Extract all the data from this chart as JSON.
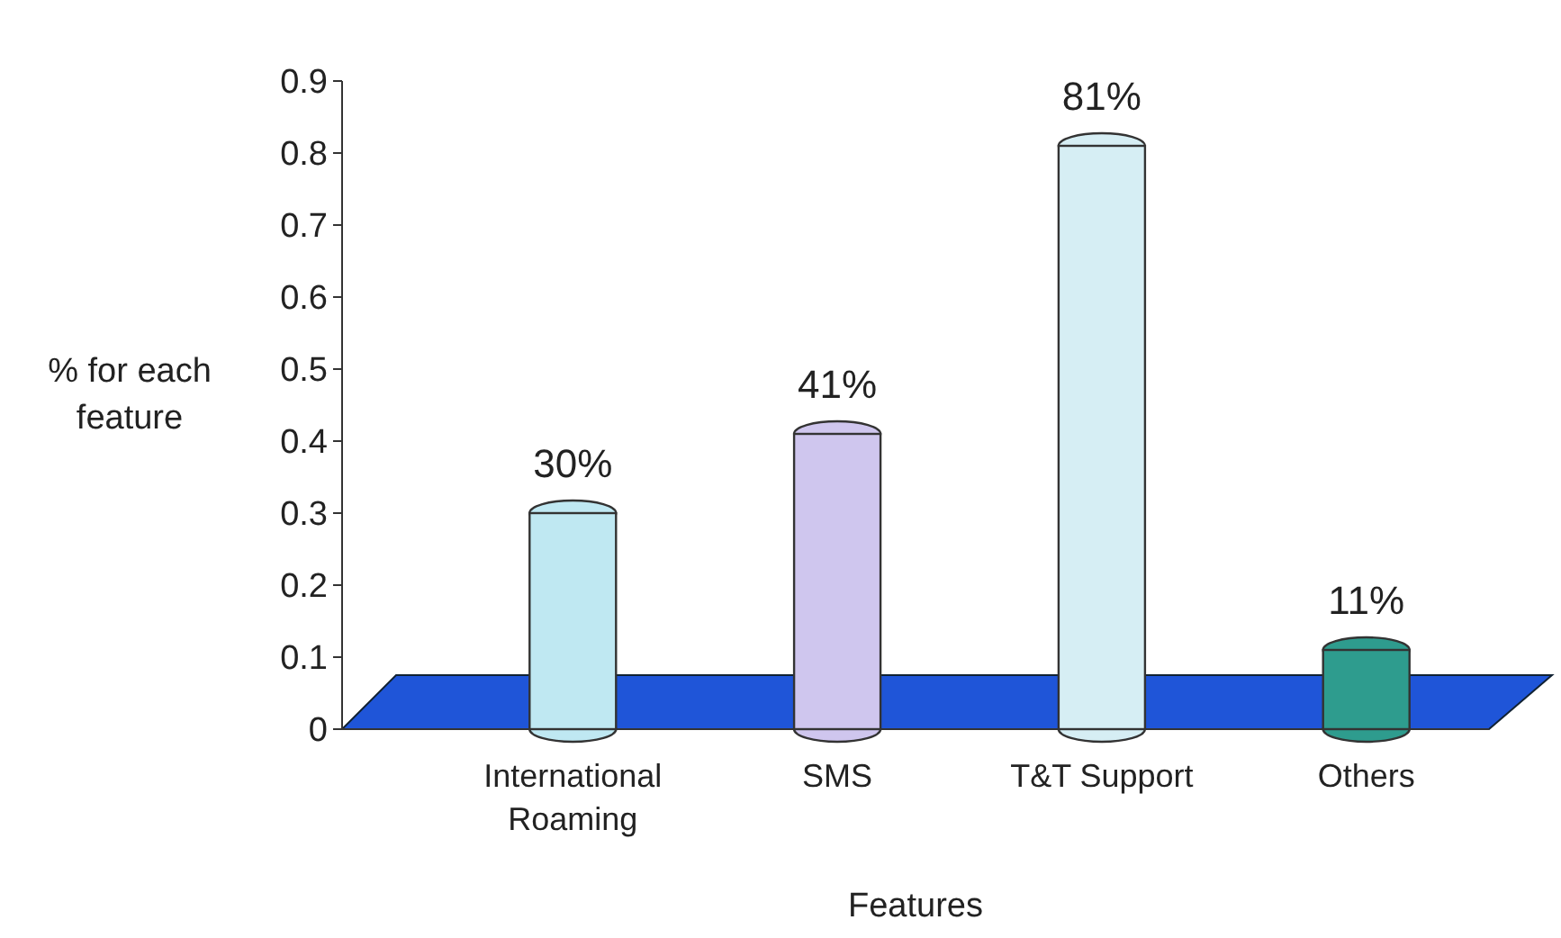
{
  "chart_data": {
    "type": "bar",
    "xlabel": "Features",
    "ylabel": "% for each feature",
    "categories": [
      "International Roaming",
      "SMS",
      "T&T Support",
      "Others"
    ],
    "values": [
      0.3,
      0.41,
      0.81,
      0.11
    ],
    "colors": [
      "#bfe8f2",
      "#cfc6ee",
      "#d6eef4",
      "#2e9c8e"
    ],
    "value_labels": [
      "30%",
      "41%",
      "81%",
      "11%"
    ],
    "ylim": [
      0,
      0.9
    ],
    "yticks": [
      0,
      0.1,
      0.2,
      0.3,
      0.4,
      0.5,
      0.6,
      0.7,
      0.8,
      0.9
    ],
    "grid": false
  }
}
